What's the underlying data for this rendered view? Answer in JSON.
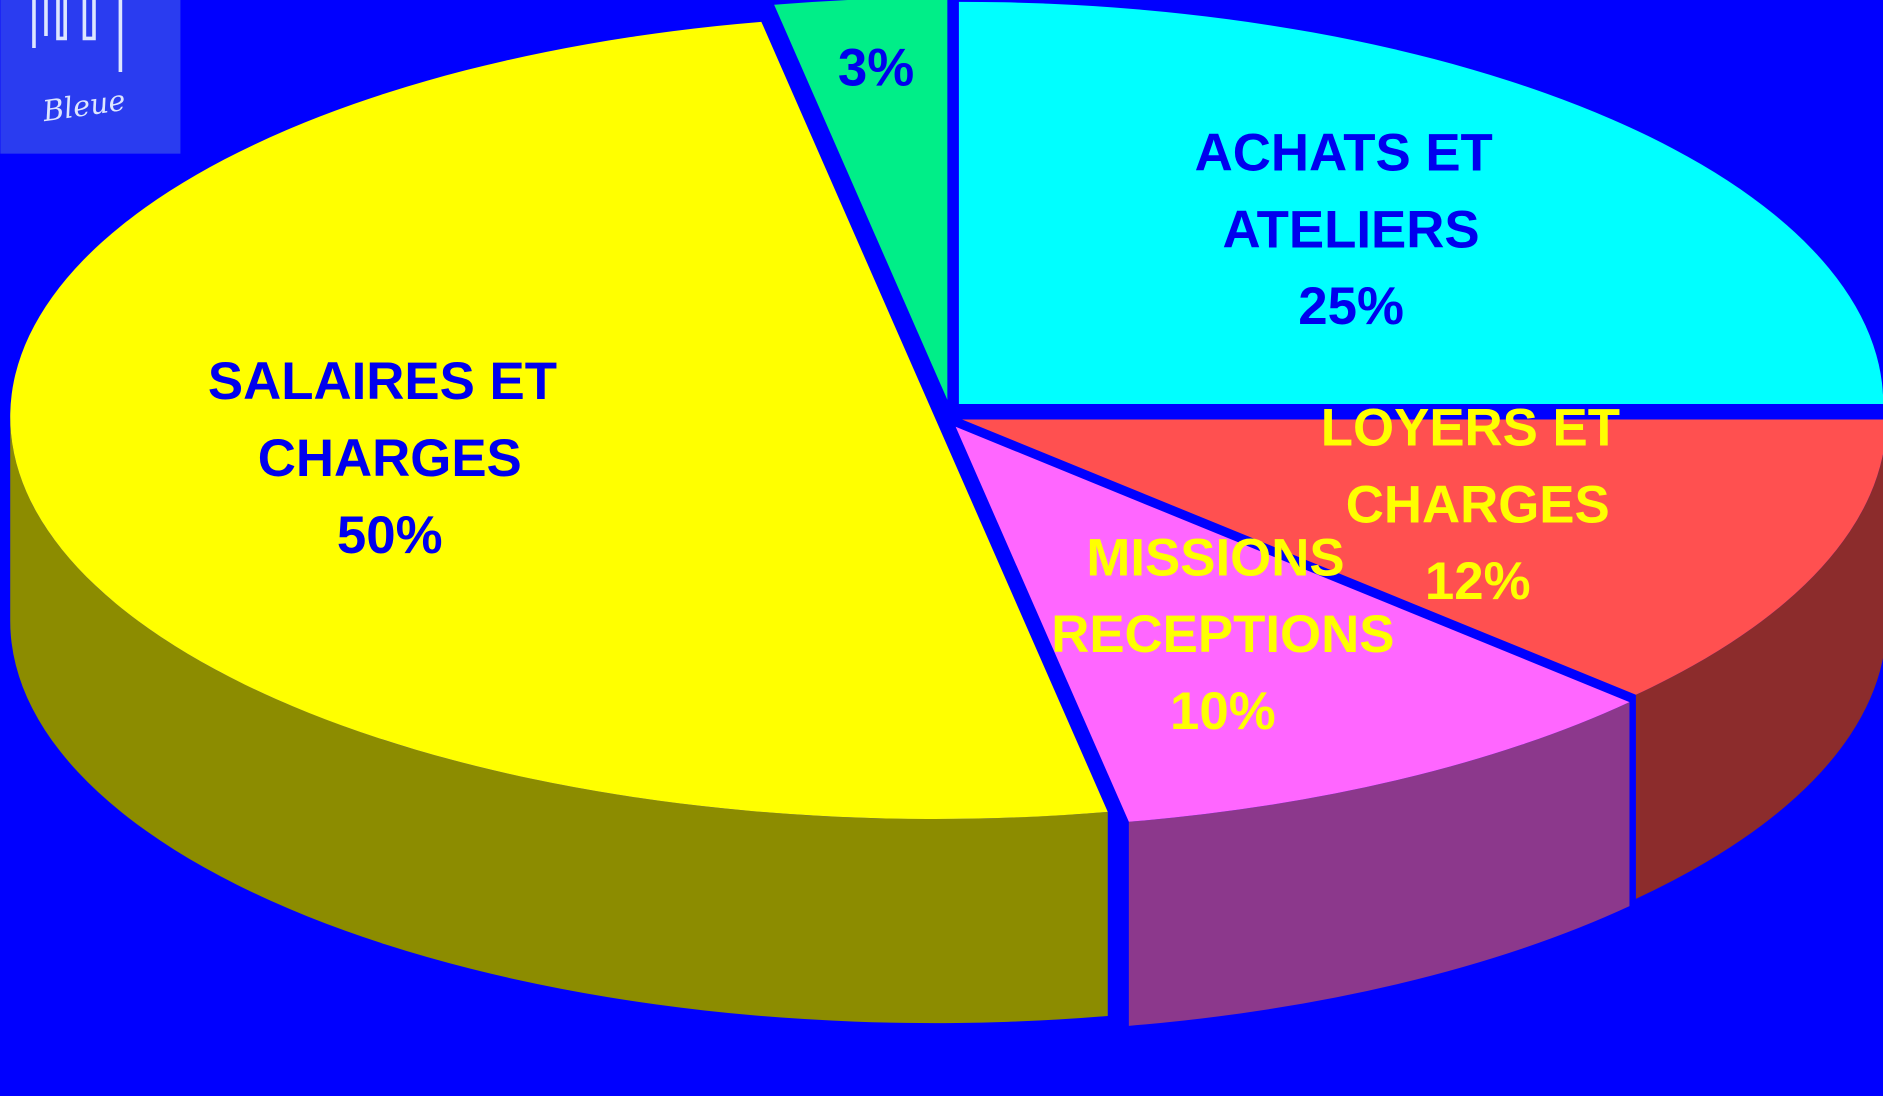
{
  "logo": "Bleue",
  "chart_data": {
    "type": "pie",
    "categories": [
      "ACHATS ET ATELIERS",
      "LOYERS ET CHARGES",
      "MISSIONS RECEPTIONS",
      "SALAIRES ET CHARGES",
      null
    ],
    "values": [
      25,
      12,
      10,
      50,
      3
    ],
    "value_labels": [
      "25%",
      "12%",
      "10%",
      "50%",
      "3%"
    ],
    "colors": [
      "#00ffff",
      "#ff5050",
      "#ff66ff",
      "#ffff00",
      "#00ee88"
    ],
    "label_colors": [
      "#0000ee",
      "#ffff00",
      "#ffff00",
      "#0000ee",
      "#0000ee"
    ],
    "start_angle": 90,
    "direction": "clockwise",
    "three_d": true
  }
}
